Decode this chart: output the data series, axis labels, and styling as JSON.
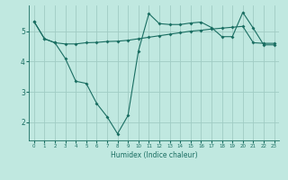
{
  "xlabel": "Humidex (Indice chaleur)",
  "background_color": "#c0e8e0",
  "grid_color": "#a0ccc4",
  "line_color": "#1a6e62",
  "x_ticks": [
    0,
    1,
    2,
    3,
    4,
    5,
    6,
    7,
    8,
    9,
    10,
    11,
    12,
    13,
    14,
    15,
    16,
    17,
    18,
    19,
    20,
    21,
    22,
    23
  ],
  "y_ticks": [
    2,
    3,
    4,
    5
  ],
  "ylim": [
    1.4,
    5.85
  ],
  "xlim": [
    -0.5,
    23.5
  ],
  "line1_x": [
    0,
    1,
    2,
    3,
    4,
    5,
    6,
    7,
    8,
    9,
    10,
    11,
    12,
    13,
    14,
    15,
    16,
    17,
    18,
    19,
    20,
    21,
    22,
    23
  ],
  "line1_y": [
    5.32,
    4.75,
    4.62,
    4.58,
    4.58,
    4.62,
    4.63,
    4.66,
    4.67,
    4.7,
    4.75,
    4.8,
    4.85,
    4.9,
    4.95,
    5.0,
    5.03,
    5.07,
    5.1,
    5.13,
    5.16,
    4.62,
    4.6,
    4.6
  ],
  "line2_x": [
    0,
    1,
    2,
    3,
    4,
    5,
    6,
    7,
    8,
    9,
    10,
    11,
    12,
    13,
    14,
    15,
    16,
    17,
    18,
    19,
    20,
    21,
    22,
    23
  ],
  "line2_y": [
    5.32,
    4.75,
    4.62,
    4.1,
    3.35,
    3.28,
    2.62,
    2.18,
    1.62,
    2.22,
    4.35,
    5.58,
    5.25,
    5.22,
    5.22,
    5.27,
    5.3,
    5.12,
    4.82,
    4.82,
    5.62,
    5.1,
    4.55,
    4.55
  ]
}
